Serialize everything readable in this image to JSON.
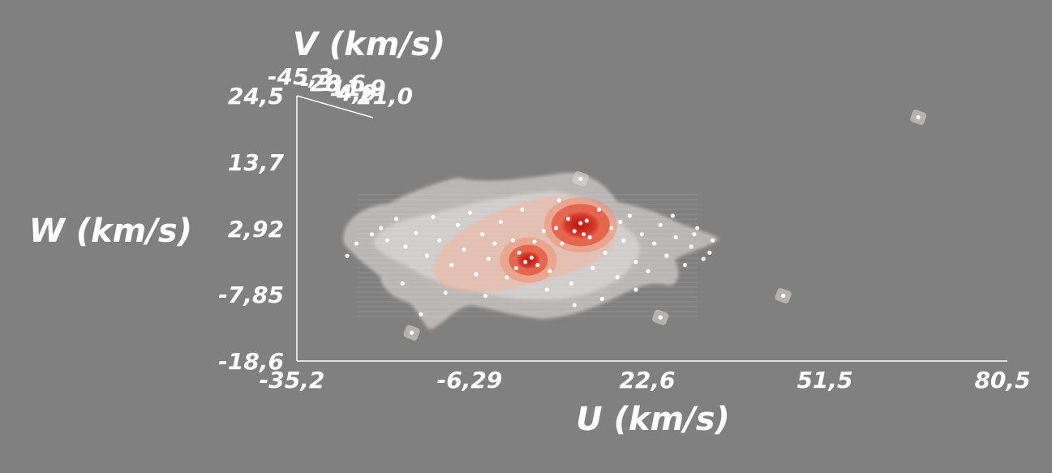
{
  "chart_data": {
    "type": "scatter",
    "title": "",
    "xlabel": "U (km/s)",
    "ylabel": "W (km/s)",
    "zlabel": "V (km/s)",
    "x_ticks": [
      "-35,2",
      "-6,29",
      "22,6",
      "51,5",
      "80,5"
    ],
    "y_ticks": [
      "24,5",
      "13,7",
      "2,92",
      "-7,85",
      "-18,6"
    ],
    "z_ticks": [
      "-45,3",
      "-28,6",
      "-11,9",
      "4,9",
      "21,0"
    ],
    "xlim": [
      -35.2,
      80.5
    ],
    "ylim": [
      -18.6,
      24.5
    ],
    "grid": false,
    "legend": "none",
    "colors": {
      "background": "#808080",
      "envelope": "#e8e4e2",
      "mid_density": "#f2b49a",
      "core": "#cc2a1e",
      "points": "#ffffff"
    },
    "density_cores": [
      {
        "u": 11.0,
        "w": 3.5
      },
      {
        "u": 2.5,
        "w": -2.2
      }
    ],
    "outliers": [
      {
        "u": 66.0,
        "w": 21.0
      },
      {
        "u": 11.0,
        "w": 11.0
      },
      {
        "u": 44.0,
        "w": -8.0
      },
      {
        "u": -16.5,
        "w": -14.0
      },
      {
        "u": 24.0,
        "w": -11.5
      }
    ],
    "points": [
      {
        "u": -25.5,
        "w": 0.5
      },
      {
        "u": -23.0,
        "w": 2.0
      },
      {
        "u": -20.5,
        "w": 1.0
      },
      {
        "u": -19.0,
        "w": 4.5
      },
      {
        "u": -17.5,
        "w": 0.0
      },
      {
        "u": -15.8,
        "w": 2.2
      },
      {
        "u": -14.0,
        "w": -1.5
      },
      {
        "u": -13.0,
        "w": 4.8
      },
      {
        "u": -12.0,
        "w": 1.0
      },
      {
        "u": -10.0,
        "w": -3.0
      },
      {
        "u": -9.0,
        "w": 3.5
      },
      {
        "u": -8.0,
        "w": -0.5
      },
      {
        "u": -7.0,
        "w": 5.5
      },
      {
        "u": -6.0,
        "w": -4.5
      },
      {
        "u": -5.0,
        "w": 2.0
      },
      {
        "u": -4.0,
        "w": -2.0
      },
      {
        "u": -3.0,
        "w": 0.5
      },
      {
        "u": -2.0,
        "w": 4.0
      },
      {
        "u": -1.0,
        "w": -5.0
      },
      {
        "u": 0.0,
        "w": 1.0
      },
      {
        "u": 1.0,
        "w": -1.0
      },
      {
        "u": 2.0,
        "w": -2.5
      },
      {
        "u": 3.0,
        "w": -1.8
      },
      {
        "u": 3.5,
        "w": 0.8
      },
      {
        "u": 4.0,
        "w": -3.0
      },
      {
        "u": 5.0,
        "w": 2.5
      },
      {
        "u": 6.0,
        "w": -4.0
      },
      {
        "u": 7.0,
        "w": 3.0
      },
      {
        "u": 8.0,
        "w": 0.5
      },
      {
        "u": 9.0,
        "w": 4.5
      },
      {
        "u": 10.0,
        "w": 2.5
      },
      {
        "u": 11.0,
        "w": 3.8
      },
      {
        "u": 11.5,
        "w": 2.0
      },
      {
        "u": 12.0,
        "w": 4.2
      },
      {
        "u": 12.5,
        "w": 1.5
      },
      {
        "u": 13.0,
        "w": -3.5
      },
      {
        "u": 14.0,
        "w": 6.0
      },
      {
        "u": 15.0,
        "w": -1.0
      },
      {
        "u": 16.0,
        "w": 3.0
      },
      {
        "u": 17.0,
        "w": -5.0
      },
      {
        "u": 18.0,
        "w": 1.0
      },
      {
        "u": 19.0,
        "w": 5.0
      },
      {
        "u": 20.0,
        "w": -2.5
      },
      {
        "u": 21.0,
        "w": 2.0
      },
      {
        "u": 22.0,
        "w": -4.0
      },
      {
        "u": 23.0,
        "w": 0.5
      },
      {
        "u": 24.0,
        "w": 3.5
      },
      {
        "u": 25.0,
        "w": -1.5
      },
      {
        "u": 26.5,
        "w": 1.5
      },
      {
        "u": 28.0,
        "w": -3.0
      },
      {
        "u": 29.0,
        "w": 0.0
      },
      {
        "u": 30.0,
        "w": 3.0
      },
      {
        "u": 31.0,
        "w": -2.0
      },
      {
        "u": 32.5,
        "w": 1.0
      },
      {
        "u": -18.0,
        "w": -6.0
      },
      {
        "u": -11.0,
        "w": -7.5
      },
      {
        "u": -4.5,
        "w": -8.0
      },
      {
        "u": 5.5,
        "w": -7.0
      },
      {
        "u": 14.5,
        "w": -8.5
      },
      {
        "u": -15.0,
        "w": -11.0
      },
      {
        "u": 10.0,
        "w": -9.5
      },
      {
        "u": 20.0,
        "w": -7.0
      },
      {
        "u": -27.0,
        "w": -1.5
      },
      {
        "u": 26.0,
        "w": 5.0
      },
      {
        "u": 29.5,
        "w": 2.0
      },
      {
        "u": 32.0,
        "w": -1.0
      },
      {
        "u": -21.5,
        "w": 3.0
      },
      {
        "u": 7.5,
        "w": 7.5
      },
      {
        "u": 9.5,
        "w": -6.0
      },
      {
        "u": 1.5,
        "w": 6.0
      },
      {
        "u": 17.5,
        "w": 4.0
      },
      {
        "u": 0.5,
        "w": -3.5
      }
    ]
  }
}
